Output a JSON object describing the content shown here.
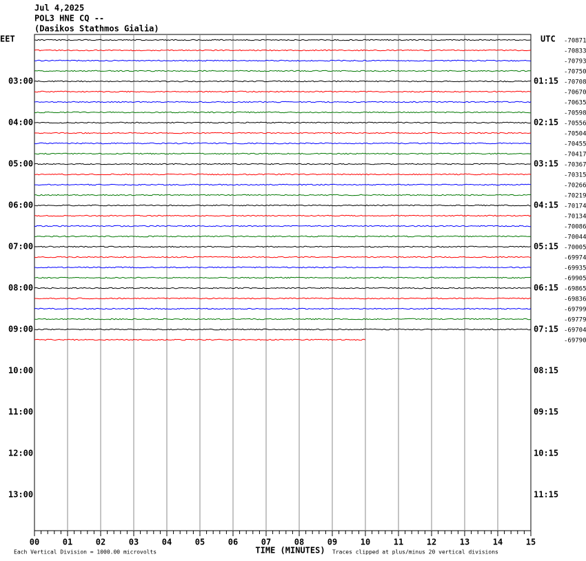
{
  "header": {
    "date": "Jul 4,2025",
    "station": "POL3 HNE CQ --",
    "location": "(Dasikos Stathmos Gialia)"
  },
  "left_axis": {
    "title": "EET",
    "labels": [
      "03:00",
      "04:00",
      "05:00",
      "06:00",
      "07:00",
      "08:00",
      "09:00",
      "10:00",
      "11:00",
      "12:00",
      "13:00"
    ]
  },
  "right_axis": {
    "title": "UTC",
    "labels": [
      "01:15",
      "02:15",
      "03:15",
      "04:15",
      "05:15",
      "06:15",
      "07:15",
      "08:15",
      "09:15",
      "10:15",
      "11:15"
    ]
  },
  "trace_colors": [
    "#000000",
    "#ff0000",
    "#0000ff",
    "#007700"
  ],
  "traces": [
    "-70871",
    "-70833",
    "-70793",
    "-70750",
    "-70708",
    "-70670",
    "-70635",
    "-70598",
    "-70556",
    "-70504",
    "-70455",
    "-70417",
    "-70367",
    "-70315",
    "-70266",
    "-70219",
    "-70174",
    "-70134",
    "-70086",
    "-70044",
    "-70005",
    "-69974",
    "-69935",
    "-69905",
    "-69865",
    "-69836",
    "-69799",
    "-69779",
    "-69704",
    "-69790"
  ],
  "x_axis": {
    "title": "TIME (MINUTES)",
    "ticks": [
      "00",
      "01",
      "02",
      "03",
      "04",
      "05",
      "06",
      "07",
      "08",
      "09",
      "10",
      "11",
      "12",
      "13",
      "14",
      "15"
    ]
  },
  "footer": {
    "scale": "Each Vertical Division = 1000.00 microvolts",
    "clip": "Traces clipped at plus/minus 20 vertical divisions"
  }
}
